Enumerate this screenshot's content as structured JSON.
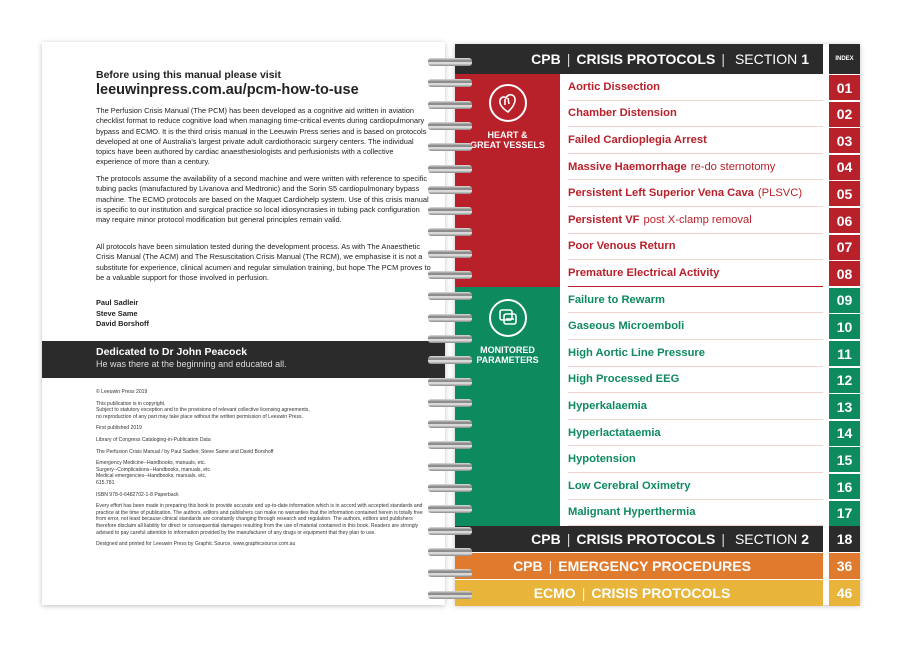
{
  "left_page": {
    "heading_line1": "Before using this manual please visit",
    "heading_line2": "leeuwinpress.com.au/pcm-how-to-use",
    "paragraphs": [
      "The Perfusion Crisis Manual (The PCM) has been developed as a cognitive aid written in aviation checklist format to reduce cognitive load when managing time-critical events during cardiopulmonary bypass and ECMO. It is the third crisis manual in the Leeuwin Press series and is based on protocols developed at one of Australia's largest private adult cardiothoracic surgery centers. The individual topics have been authored by cardiac anaesthesiologists and perfusionists with a collective experience of more than a century.",
      "The protocols assume the availability of a second machine and were written with reference to specific tubing packs (manufactured by Livanova and Medtronic) and the Sorin S5 cardiopulmonary bypass machine. The ECMO protocols are based on the Maquet Cardiohelp system. Use of this crisis manual is specific to our institution and surgical practice so local idiosyncrasies in tubing pack configuration may require minor protocol modification but general principles remain valid.",
      "All protocols have been simulation tested during the development process. As with The Anaesthetic Crisis Manual (The ACM) and The Resuscitation Crisis Manual (The RCM), we emphasise it is not a substitute for experience, clinical acumen and regular simulation training, but hope The PCM proves to be a valuable support for those involved in perfusion."
    ],
    "authors": [
      "Paul Sadleir",
      "Steve Same",
      "David Borshoff"
    ],
    "dedication_title": "Dedicated to Dr John Peacock",
    "dedication_sub": "He was there at the beginning and educated all.",
    "imprint": [
      "© Leeuwin Press 2019",
      "This publication is in copyright.\nSubject to statutory exception and to the provisions of relevant collective licensing agreements,\nno reproduction of any part may take place without the written permission of Leeuwin Press.",
      "First published 2019",
      "Library of Congress Cataloging-in-Publication Data",
      "The Perfusion Crisis Manual / by Paul Sadleir, Steve Same and David Borshoff",
      "Emergency Medicine--Handbooks, manuals, etc.\nSurgery--Complications--Handbooks, manuals, etc.\nMedical emergencies--Handbooks, manuals, etc.\n615.781",
      "ISBN 978-0-6482702-1-8 Paperback",
      "Every effort has been made in preparing this book to provide accurate and up-to-date information which is in accord with accepted standards and practice at the time of publication. The authors, editors and publishers can make no warranties that the information contained herein is totally free from error, not least because clinical standards are constantly changing through research and regulation. The authors, editors and publishers therefore disclaim all liability for direct or consequential damages resulting from the use of material contained in this book. Readers are strongly advised to pay careful attention to information provided by the manufacturer of any drugs or equipment that they plan to use.",
      "Designed and printed for Leeuwin Press by Graphic Source, www.graphicsource.com.au"
    ]
  },
  "right_page": {
    "header": {
      "a": "CPB",
      "b": "CRISIS PROTOCOLS",
      "c": "SECTION",
      "d": "1",
      "index_label": "INDEX"
    },
    "colors": {
      "red": "#b8202a",
      "green": "#0e8a5f",
      "dark": "#2b2b2b",
      "orange": "#e07a2c",
      "yellow": "#e8b43a"
    },
    "groups": [
      {
        "label1": "HEART &",
        "label2": "GREAT VESSELS",
        "icon": "heart-icon",
        "items": [
          {
            "title": "Aortic Dissection",
            "sub": "",
            "num": "01"
          },
          {
            "title": "Chamber Distension",
            "sub": "",
            "num": "02"
          },
          {
            "title": "Failed Cardioplegia Arrest",
            "sub": "",
            "num": "03"
          },
          {
            "title": "Massive Haemorrhage",
            "sub": "re-do sternotomy",
            "num": "04"
          },
          {
            "title": "Persistent Left Superior Vena Cava",
            "sub": "(PLSVC)",
            "num": "05"
          },
          {
            "title": "Persistent VF",
            "sub": "post X-clamp removal",
            "num": "06"
          },
          {
            "title": "Poor Venous Return",
            "sub": "",
            "num": "07"
          },
          {
            "title": "Premature Electrical Activity",
            "sub": "",
            "num": "08"
          }
        ]
      },
      {
        "label1": "MONITORED",
        "label2": "PARAMETERS",
        "icon": "monitor-icon",
        "items": [
          {
            "title": "Failure to Rewarm",
            "sub": "",
            "num": "09"
          },
          {
            "title": "Gaseous Microemboli",
            "sub": "",
            "num": "10"
          },
          {
            "title": "High Aortic Line Pressure",
            "sub": "",
            "num": "11"
          },
          {
            "title": "High Processed EEG",
            "sub": "",
            "num": "12"
          },
          {
            "title": "Hyperkalaemia",
            "sub": "",
            "num": "13"
          },
          {
            "title": "Hyperlactataemia",
            "sub": "",
            "num": "14"
          },
          {
            "title": "Hypotension",
            "sub": "",
            "num": "15"
          },
          {
            "title": "Low Cerebral Oximetry",
            "sub": "",
            "num": "16"
          },
          {
            "title": "Malignant Hyperthermia",
            "sub": "",
            "num": "17"
          }
        ]
      }
    ],
    "sections": [
      {
        "a": "CPB",
        "b": "CRISIS PROTOCOLS",
        "c": "SECTION",
        "d": "2",
        "num": "18"
      },
      {
        "a": "CPB",
        "b": "EMERGENCY PROCEDURES",
        "c": "",
        "d": "",
        "num": "36"
      },
      {
        "a": "ECMO",
        "b": "CRISIS PROTOCOLS",
        "c": "",
        "d": "",
        "num": "46"
      }
    ]
  }
}
